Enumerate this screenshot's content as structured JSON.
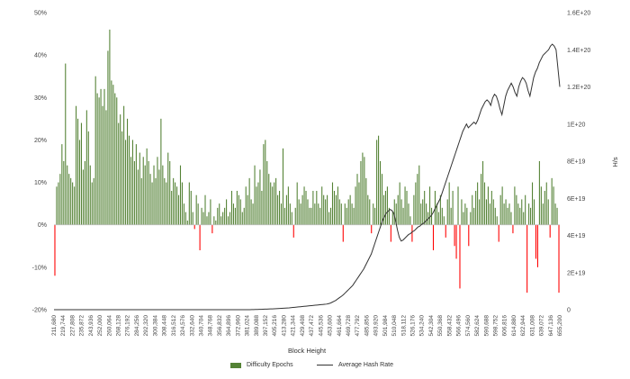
{
  "chart_data": {
    "type": "bar",
    "title": "",
    "xlabel": "Block Height",
    "ylabel_left": "",
    "ylabel_right": "H/s",
    "ylim_left": [
      -0.2,
      0.5
    ],
    "ylim_right": [
      0,
      1.6e+20
    ],
    "y_left_ticks": [
      "-20%",
      "-10%",
      "0%",
      "10%",
      "20%",
      "30%",
      "40%",
      "50%"
    ],
    "y_right_ticks": [
      "0",
      "2E+19",
      "4E+19",
      "6E+19",
      "8E+19",
      "1E+20",
      "1.2E+20",
      "1.4E+20",
      "1.6E+20"
    ],
    "x_tick_labels": [
      "211,680",
      "219,744",
      "227,808",
      "235,872",
      "243,936",
      "252,000",
      "260,064",
      "268,128",
      "276,192",
      "284,256",
      "292,320",
      "300,384",
      "308,448",
      "316,512",
      "324,576",
      "332,640",
      "340,704",
      "348,768",
      "356,832",
      "364,896",
      "372,960",
      "381,024",
      "389,088",
      "397,152",
      "405,216",
      "413,280",
      "421,344",
      "429,408",
      "437,472",
      "445,536",
      "453,600",
      "461,664",
      "469,728",
      "477,792",
      "485,856",
      "493,920",
      "501,984",
      "510,048",
      "518,112",
      "526,176",
      "534,240",
      "542,304",
      "550,368",
      "558,432",
      "566,496",
      "574,560",
      "582,624",
      "590,688",
      "598,752",
      "606,816",
      "614,880",
      "622,944",
      "631,008",
      "639,072",
      "647,136",
      "655,200"
    ],
    "series": [
      {
        "name": "Difficulty Epochs",
        "kind": "bar",
        "color": "#548235",
        "negative_color": "#ff0000",
        "values": [
          -0.12,
          0.09,
          0.1,
          0.12,
          0.19,
          0.15,
          0.38,
          0.14,
          0.12,
          0.11,
          0.1,
          0.09,
          0.28,
          0.25,
          0.2,
          0.24,
          0.13,
          0.15,
          0.27,
          0.22,
          0.14,
          0.1,
          0.11,
          0.35,
          0.31,
          0.3,
          0.32,
          0.28,
          0.32,
          0.27,
          0.41,
          0.46,
          0.34,
          0.33,
          0.31,
          0.3,
          0.24,
          0.26,
          0.22,
          0.28,
          0.2,
          0.25,
          0.21,
          0.16,
          0.2,
          0.15,
          0.19,
          0.13,
          0.17,
          0.11,
          0.16,
          0.14,
          0.18,
          0.15,
          0.12,
          0.1,
          0.14,
          0.11,
          0.16,
          0.13,
          0.25,
          0.14,
          0.11,
          0.1,
          0.17,
          0.15,
          0.08,
          0.11,
          0.1,
          0.09,
          0.07,
          0.14,
          0.1,
          0.05,
          0.03,
          0.01,
          0.1,
          0.08,
          0.03,
          -0.01,
          0.07,
          0.05,
          -0.06,
          0.04,
          0.03,
          0.07,
          0.02,
          0.03,
          0.06,
          -0.02,
          0.02,
          0.01,
          0.04,
          0.05,
          0.02,
          0.03,
          0.04,
          0.06,
          0.02,
          0.03,
          0.08,
          0.05,
          0.04,
          0.08,
          0.07,
          0.06,
          0.03,
          0.04,
          0.09,
          0.07,
          0.11,
          0.06,
          0.05,
          0.14,
          0.09,
          0.1,
          0.13,
          0.08,
          0.19,
          0.2,
          0.15,
          0.12,
          0.1,
          0.09,
          0.1,
          0.11,
          0.07,
          0.08,
          0.05,
          0.18,
          0.04,
          0.07,
          0.09,
          0.05,
          0.03,
          -0.03,
          0.04,
          0.1,
          0.06,
          0.05,
          0.07,
          0.09,
          0.08,
          0.06,
          0.04,
          0.04,
          0.08,
          0.05,
          0.08,
          0.05,
          0.04,
          0.09,
          0.07,
          0.06,
          0.07,
          0.03,
          0.04,
          0.1,
          0.08,
          0.07,
          0.09,
          0.06,
          0.05,
          -0.04,
          0.05,
          0.04,
          0.06,
          0.07,
          0.05,
          0.04,
          0.09,
          0.12,
          0.1,
          0.15,
          0.17,
          0.16,
          0.11,
          0.07,
          0.06,
          -0.02,
          0.05,
          0.04,
          0.2,
          0.21,
          0.15,
          0.12,
          0.07,
          0.08,
          0.09,
          0.04,
          -0.04,
          0.03,
          0.06,
          0.05,
          0.07,
          0.1,
          0.06,
          0.04,
          0.09,
          0.08,
          0.05,
          0.02,
          -0.04,
          0.07,
          0.1,
          0.12,
          0.14,
          0.05,
          0.06,
          0.08,
          0.05,
          0.03,
          0.09,
          0.04,
          -0.06,
          0.08,
          0.05,
          0.03,
          0.07,
          0.04,
          0.02,
          -0.03,
          0.06,
          0.1,
          0.04,
          0.08,
          -0.05,
          -0.08,
          0.09,
          -0.15,
          0.06,
          0.03,
          0.05,
          0.04,
          -0.05,
          0.03,
          0.07,
          0.04,
          0.08,
          0.1,
          0.06,
          0.12,
          0.15,
          0.1,
          0.06,
          0.09,
          0.05,
          0.08,
          0.06,
          0.04,
          0.02,
          -0.04,
          0.07,
          0.09,
          0.05,
          0.06,
          0.04,
          0.05,
          0.03,
          -0.02,
          0.09,
          0.07,
          0.05,
          0.04,
          0.06,
          0.03,
          0.07,
          -0.16,
          0.05,
          0.04,
          0.1,
          0.06,
          -0.08,
          -0.1,
          0.15,
          0.09,
          0.05,
          0.08,
          0.1,
          0.06,
          -0.03,
          0.11,
          0.09,
          0.05,
          0.04,
          -0.16
        ]
      },
      {
        "name": "Average Hash Rate",
        "kind": "line",
        "axis": "right",
        "color": "#333333",
        "values": [
          0,
          0,
          0,
          0,
          0,
          0,
          0,
          0,
          0,
          0,
          0,
          0,
          0,
          0,
          0,
          0,
          0,
          0,
          0,
          0,
          0,
          0,
          0,
          0,
          0,
          0,
          0,
          0,
          0,
          0,
          0,
          0,
          0,
          0,
          0,
          0,
          0,
          0,
          0,
          0,
          0,
          0,
          0,
          0,
          0,
          0,
          0,
          0,
          0,
          0,
          0,
          0,
          0,
          0,
          0,
          0,
          0,
          0,
          0,
          0,
          0,
          0,
          0,
          0,
          0,
          0,
          0,
          0,
          0,
          0,
          0,
          0,
          0,
          0,
          0,
          0,
          0,
          0,
          0,
          0,
          0,
          0,
          0,
          0,
          0,
          0,
          0,
          0,
          0,
          0,
          0,
          0,
          0,
          0,
          0,
          0,
          0,
          0,
          0,
          0,
          0,
          0,
          0,
          1e+16,
          2e+16,
          3e+16,
          5e+16,
          7e+16,
          1e+17,
          1.3e+17,
          1.6e+17,
          2e+17,
          2.4e+17,
          2.8e+17,
          3.2e+17,
          3.6e+17,
          4e+17,
          4.5e+17,
          5e+17,
          5.5e+17,
          6e+17,
          6.6e+17,
          7.2e+17,
          7.8e+17,
          8.5e+17,
          9.2e+17,
          1e+18,
          1.1e+18,
          1.2e+18,
          1.3e+18,
          1.4e+18,
          1.5e+18,
          1.6e+18,
          1.7e+18,
          1.8e+18,
          1.9e+18,
          2e+18,
          2.1e+18,
          2.2e+18,
          2.3e+18,
          2.4e+18,
          2.5e+18,
          2.6e+18,
          2.7e+18,
          2.8e+18,
          2.9e+18,
          3e+18,
          3.2e+18,
          3.5e+18,
          4e+18,
          4.5e+18,
          5e+18,
          5.8e+18,
          6.5e+18,
          7.2e+18,
          8e+18,
          9e+18,
          1e+19,
          1.1e+19,
          1.2e+19,
          1.3e+19,
          1.45e+19,
          1.6e+19,
          1.75e+19,
          1.9e+19,
          2.05e+19,
          2.2e+19,
          2.4e+19,
          2.6e+19,
          2.8e+19,
          3e+19,
          3.3e+19,
          3.6e+19,
          3.9e+19,
          4.2e+19,
          4.5e+19,
          4.8e+19,
          5e+19,
          5.2e+19,
          5.3e+19,
          5.4e+19,
          5.35e+19,
          5.2e+19,
          4.8e+19,
          4.3e+19,
          3.9e+19,
          3.7e+19,
          3.75e+19,
          3.85e+19,
          3.95e+19,
          4.05e+19,
          4.1e+19,
          4.2e+19,
          4.25e+19,
          4.35e+19,
          4.45e+19,
          4.5e+19,
          4.6e+19,
          4.65e+19,
          4.75e+19,
          4.85e+19,
          4.95e+19,
          5.05e+19,
          5.2e+19,
          5.4e+19,
          5.6e+19,
          5.8e+19,
          6e+19,
          6.3e+19,
          6.6e+19,
          6.9e+19,
          7.2e+19,
          7.5e+19,
          7.8e+19,
          8.1e+19,
          8.4e+19,
          8.7e+19,
          9e+19,
          9.3e+19,
          9.6e+19,
          9.8e+19,
          1e+20,
          9.8e+19,
          9.9e+19,
          1e+20,
          1.01e+20,
          1e+20,
          1.02e+20,
          1.05e+20,
          1.08e+20,
          1.1e+20,
          1.12e+20,
          1.13e+20,
          1.12e+20,
          1.1e+20,
          1.14e+20,
          1.16e+20,
          1.15e+20,
          1.12e+20,
          1.08e+20,
          1.05e+20,
          1.1e+20,
          1.15e+20,
          1.18e+20,
          1.2e+20,
          1.22e+20,
          1.2e+20,
          1.17e+20,
          1.15e+20,
          1.2e+20,
          1.23e+20,
          1.25e+20,
          1.24e+20,
          1.22e+20,
          1.18e+20,
          1.15e+20,
          1.2e+20,
          1.25e+20,
          1.28e+20,
          1.3e+20,
          1.33e+20,
          1.35e+20,
          1.37e+20,
          1.38e+20,
          1.39e+20,
          1.4e+20,
          1.42e+20,
          1.43e+20,
          1.42e+20,
          1.4e+20,
          1.3e+20,
          1.2e+20
        ]
      }
    ],
    "grid": false,
    "legend_position": "bottom"
  },
  "legend": {
    "bar_label": "Difficulty Epochs",
    "line_label": "Average Hash Rate"
  }
}
